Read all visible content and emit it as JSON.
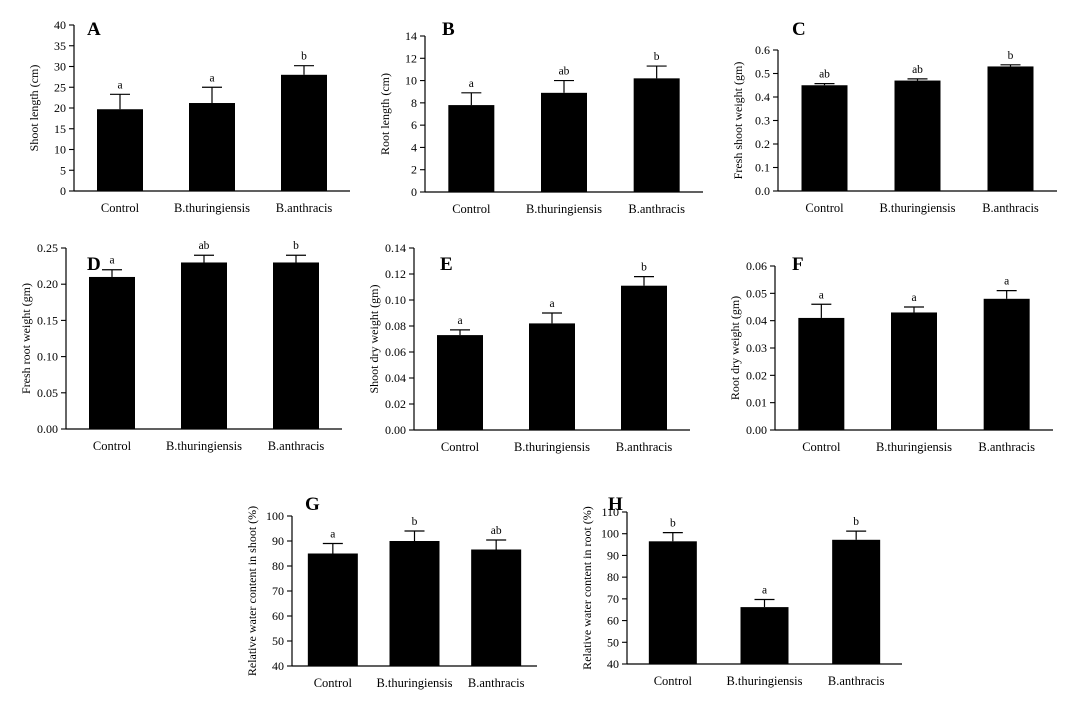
{
  "chart_data": [
    {
      "panel": "A",
      "type": "bar",
      "categories": [
        "Control",
        "B.thuringiensis",
        "B.anthracis"
      ],
      "values": [
        19.7,
        21.2,
        28.0
      ],
      "errors": [
        3.6,
        3.8,
        2.2
      ],
      "significance": [
        "a",
        "a",
        "b"
      ],
      "ylabel": "Shoot length (cm)",
      "ylim": [
        0,
        40
      ],
      "yticks": [
        "0",
        "5",
        "10",
        "15",
        "20",
        "25",
        "30",
        "35",
        "40"
      ]
    },
    {
      "panel": "B",
      "type": "bar",
      "categories": [
        "Control",
        "B.thuringiensis",
        "B.anthracis"
      ],
      "values": [
        7.8,
        8.9,
        10.2
      ],
      "errors": [
        1.1,
        1.1,
        1.1
      ],
      "significance": [
        "a",
        "ab",
        "b"
      ],
      "ylabel": "Root length (cm)",
      "ylim": [
        0,
        14
      ],
      "yticks": [
        "0",
        "2",
        "4",
        "6",
        "8",
        "10",
        "12",
        "14"
      ]
    },
    {
      "panel": "C",
      "type": "bar",
      "categories": [
        "Control",
        "B.thuringiensis",
        "B.anthracis"
      ],
      "values": [
        0.45,
        0.47,
        0.53
      ],
      "errors": [
        0.007,
        0.007,
        0.007
      ],
      "significance": [
        "ab",
        "ab",
        "b"
      ],
      "ylabel": "Fresh shoot weight (gm)",
      "ylim": [
        0,
        0.6
      ],
      "yticks": [
        "0.0",
        "0.1",
        "0.2",
        "0.3",
        "0.4",
        "0.5",
        "0.6"
      ]
    },
    {
      "panel": "D",
      "type": "bar",
      "categories": [
        "Control",
        "B.thuringiensis",
        "B.anthracis"
      ],
      "values": [
        0.21,
        0.23,
        0.23
      ],
      "errors": [
        0.01,
        0.01,
        0.01
      ],
      "significance": [
        "a",
        "ab",
        "b"
      ],
      "ylabel": "Fresh root weight (gm)",
      "ylim": [
        0,
        0.25
      ],
      "yticks": [
        "0.00",
        "0.05",
        "0.10",
        "0.15",
        "0.20",
        "0.25"
      ]
    },
    {
      "panel": "E",
      "type": "bar",
      "categories": [
        "Control",
        "B.thuringiensis",
        "B.anthracis"
      ],
      "values": [
        0.073,
        0.082,
        0.111
      ],
      "errors": [
        0.004,
        0.008,
        0.007
      ],
      "significance": [
        "a",
        "a",
        "b"
      ],
      "ylabel": "Shoot dry weight (gm)",
      "ylim": [
        0,
        0.14
      ],
      "yticks": [
        "0.00",
        "0.02",
        "0.04",
        "0.06",
        "0.08",
        "0.10",
        "0.12",
        "0.14"
      ]
    },
    {
      "panel": "F",
      "type": "bar",
      "categories": [
        "Control",
        "B.thuringiensis",
        "B.anthracis"
      ],
      "values": [
        0.041,
        0.043,
        0.048
      ],
      "errors": [
        0.005,
        0.002,
        0.003
      ],
      "significance": [
        "a",
        "a",
        "a"
      ],
      "ylabel": "Root dry weight (gm)",
      "ylim": [
        0,
        0.06
      ],
      "yticks": [
        "0.00",
        "0.01",
        "0.02",
        "0.03",
        "0.04",
        "0.05",
        "0.06"
      ]
    },
    {
      "panel": "G",
      "type": "bar",
      "categories": [
        "Control",
        "B.thuringiensis",
        "B.anthracis"
      ],
      "values": [
        85,
        90,
        86.6
      ],
      "errors": [
        4,
        4,
        3.8
      ],
      "significance": [
        "a",
        "b",
        "ab"
      ],
      "ylabel": "Relative water content in shoot (%)",
      "ylim": [
        40,
        100
      ],
      "yticks": [
        "40",
        "50",
        "60",
        "70",
        "80",
        "90",
        "100"
      ]
    },
    {
      "panel": "H",
      "type": "bar",
      "categories": [
        "Control",
        "B.thuringiensis",
        "B.anthracis"
      ],
      "values": [
        96.5,
        66.2,
        97.2
      ],
      "errors": [
        4,
        3.5,
        4
      ],
      "significance": [
        "b",
        "a",
        "b"
      ],
      "ylabel": "Relative water content in root (%)",
      "ylim": [
        40,
        110
      ],
      "yticks": [
        "40",
        "50",
        "60",
        "70",
        "80",
        "90",
        "100",
        "110"
      ]
    }
  ]
}
